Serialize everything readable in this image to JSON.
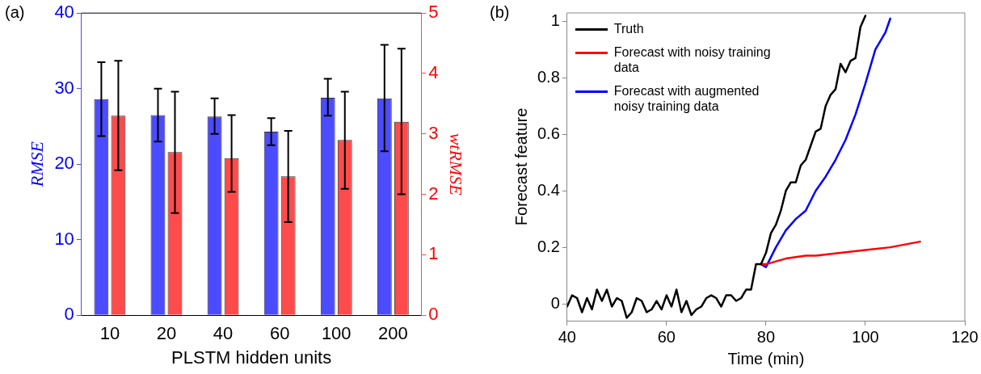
{
  "chart_data": [
    {
      "type": "bar",
      "annotations": [
        "(a)"
      ],
      "xlabel": "PLSTM hidden units",
      "ylabel": "RMSE",
      "y2label": "wtRMSE",
      "categories": [
        "10",
        "20",
        "40",
        "60",
        "100",
        "200"
      ],
      "series": [
        {
          "color": "#4b4bff",
          "values": [
            28.6,
            26.5,
            26.3,
            24.3,
            28.8,
            28.7
          ],
          "errors": [
            [
              23.7,
              33.5
            ],
            [
              23.0,
              30.0
            ],
            [
              24.0,
              28.7
            ],
            [
              22.5,
              26.1
            ],
            [
              26.4,
              31.3
            ],
            [
              21.7,
              35.8
            ]
          ]
        },
        {
          "color": "#ff4b4b",
          "axis": "y2",
          "values": [
            3.3,
            2.7,
            2.6,
            2.3,
            2.9,
            3.2
          ],
          "errors": [
            [
              2.4,
              4.21
            ],
            [
              1.69,
              3.7
            ],
            [
              2.04,
              3.31
            ],
            [
              1.54,
              3.05
            ],
            [
              2.09,
              3.7
            ],
            [
              2.0,
              4.41
            ]
          ]
        }
      ],
      "ylim": [
        0,
        40
      ],
      "yticks": [
        0,
        10,
        20,
        30,
        40
      ],
      "y2lim": [
        0,
        5
      ],
      "y2ticks": [
        0,
        1,
        2,
        3,
        4,
        5
      ],
      "grid": false,
      "legend": false
    },
    {
      "type": "line",
      "annotations": [
        "(b)"
      ],
      "xlabel": "Time (min)",
      "ylabel": "Forecast feature",
      "xlim": [
        40,
        120
      ],
      "xticks": [
        40,
        60,
        80,
        100,
        120
      ],
      "ylim": [
        -0.06,
        1.03
      ],
      "yticks": [
        0,
        0.2,
        0.4,
        0.6,
        0.8,
        1
      ],
      "grid": false,
      "legend": "top left",
      "marker": "none",
      "line_style": "solid",
      "series": [
        {
          "name": "Truth",
          "color": "#000000",
          "x": [
            40,
            41,
            42,
            43,
            44,
            45,
            46,
            47,
            48,
            49,
            50,
            51,
            52,
            53,
            54,
            55,
            56,
            57,
            58,
            59,
            60,
            61,
            62,
            63,
            64,
            65,
            66,
            67,
            68,
            69,
            70,
            71,
            72,
            73,
            74,
            75,
            76,
            77,
            78,
            79,
            80,
            81,
            82,
            83,
            84,
            85,
            86,
            87,
            88,
            89,
            90,
            91,
            92,
            93,
            94,
            95,
            96,
            97,
            98,
            99,
            100
          ],
          "values": [
            -0.01,
            0.03,
            0.02,
            -0.03,
            0.02,
            -0.02,
            0.05,
            0.01,
            0.05,
            -0.01,
            0.02,
            0.01,
            -0.05,
            -0.03,
            0.02,
            0.01,
            -0.03,
            -0.02,
            0.01,
            -0.02,
            0.03,
            -0.01,
            0.05,
            -0.03,
            0.01,
            -0.04,
            -0.02,
            -0.01,
            0.02,
            0.03,
            0.02,
            -0.01,
            0.03,
            0.03,
            0.01,
            0.02,
            0.05,
            0.05,
            0.14,
            0.14,
            0.18,
            0.25,
            0.28,
            0.33,
            0.4,
            0.43,
            0.43,
            0.49,
            0.51,
            0.56,
            0.61,
            0.62,
            0.7,
            0.74,
            0.76,
            0.85,
            0.82,
            0.86,
            0.87,
            0.98,
            1.02
          ]
        },
        {
          "name": "Forecast with noisy training data",
          "color": "#ff0000",
          "x": [
            79,
            80,
            84,
            88,
            90,
            95,
            100,
            105,
            111
          ],
          "values": [
            0.14,
            0.14,
            0.16,
            0.17,
            0.17,
            0.18,
            0.19,
            0.2,
            0.22
          ]
        },
        {
          "name": "Forecast with augmented noisy training data",
          "color": "#0000ff",
          "x": [
            79,
            80,
            82,
            84,
            86,
            88,
            90,
            92,
            94,
            96,
            98,
            100,
            102,
            104,
            105
          ],
          "values": [
            0.14,
            0.13,
            0.2,
            0.26,
            0.3,
            0.33,
            0.4,
            0.45,
            0.51,
            0.58,
            0.67,
            0.78,
            0.9,
            0.96,
            1.01
          ]
        }
      ]
    }
  ]
}
